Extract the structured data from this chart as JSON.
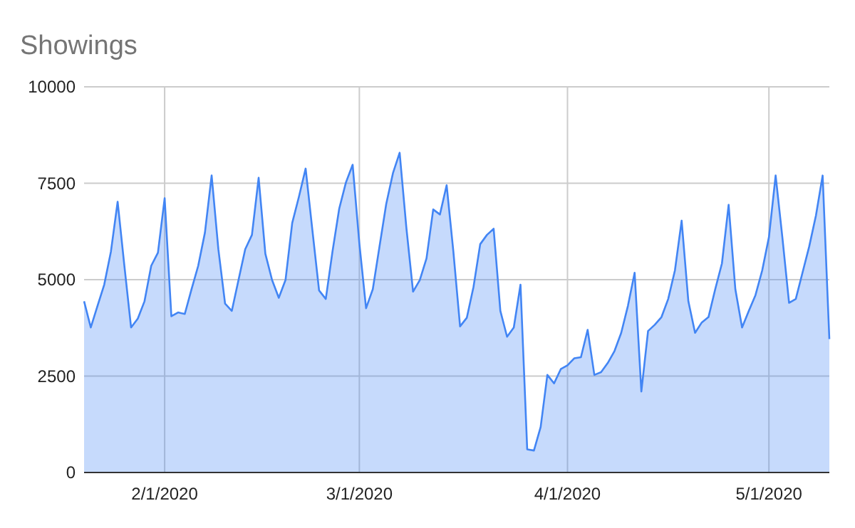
{
  "chart_data": {
    "type": "area",
    "title": "Showings",
    "xlim": [
      "2020-01-20",
      "2020-05-10"
    ],
    "ylim": [
      0,
      10000
    ],
    "yticks": [
      0,
      2500,
      5000,
      7500,
      10000
    ],
    "xticks": [
      {
        "value": "2020-02-01",
        "label": "2/1/2020"
      },
      {
        "value": "2020-03-01",
        "label": "3/1/2020"
      },
      {
        "value": "2020-04-01",
        "label": "4/1/2020"
      },
      {
        "value": "2020-05-01",
        "label": "5/1/2020"
      }
    ],
    "grid": true,
    "x": [
      "2020-01-20",
      "2020-01-21",
      "2020-01-22",
      "2020-01-23",
      "2020-01-24",
      "2020-01-25",
      "2020-01-26",
      "2020-01-27",
      "2020-01-28",
      "2020-01-29",
      "2020-01-30",
      "2020-01-31",
      "2020-02-01",
      "2020-02-02",
      "2020-02-03",
      "2020-02-04",
      "2020-02-05",
      "2020-02-06",
      "2020-02-07",
      "2020-02-08",
      "2020-02-09",
      "2020-02-10",
      "2020-02-11",
      "2020-02-12",
      "2020-02-13",
      "2020-02-14",
      "2020-02-15",
      "2020-02-16",
      "2020-02-17",
      "2020-02-18",
      "2020-02-19",
      "2020-02-20",
      "2020-02-21",
      "2020-02-22",
      "2020-02-23",
      "2020-02-24",
      "2020-02-25",
      "2020-02-26",
      "2020-02-27",
      "2020-02-28",
      "2020-02-29",
      "2020-03-01",
      "2020-03-02",
      "2020-03-03",
      "2020-03-04",
      "2020-03-05",
      "2020-03-06",
      "2020-03-07",
      "2020-03-08",
      "2020-03-09",
      "2020-03-10",
      "2020-03-11",
      "2020-03-12",
      "2020-03-13",
      "2020-03-14",
      "2020-03-15",
      "2020-03-16",
      "2020-03-17",
      "2020-03-18",
      "2020-03-19",
      "2020-03-20",
      "2020-03-21",
      "2020-03-22",
      "2020-03-23",
      "2020-03-24",
      "2020-03-25",
      "2020-03-26",
      "2020-03-27",
      "2020-03-28",
      "2020-03-29",
      "2020-03-30",
      "2020-03-31",
      "2020-04-01",
      "2020-04-02",
      "2020-04-03",
      "2020-04-04",
      "2020-04-05",
      "2020-04-06",
      "2020-04-07",
      "2020-04-08",
      "2020-04-09",
      "2020-04-10",
      "2020-04-11",
      "2020-04-12",
      "2020-04-13",
      "2020-04-14",
      "2020-04-15",
      "2020-04-16",
      "2020-04-17",
      "2020-04-18",
      "2020-04-19",
      "2020-04-20",
      "2020-04-21",
      "2020-04-22",
      "2020-04-23",
      "2020-04-24",
      "2020-04-25",
      "2020-04-26",
      "2020-04-27",
      "2020-04-28",
      "2020-04-29",
      "2020-04-30",
      "2020-05-01",
      "2020-05-02",
      "2020-05-03",
      "2020-05-04",
      "2020-05-05",
      "2020-05-06",
      "2020-05-07",
      "2020-05-08",
      "2020-05-09",
      "2020-05-10"
    ],
    "series": [
      {
        "color": "#4285f4",
        "values": [
          4440,
          3760,
          4320,
          4870,
          5730,
          7020,
          5360,
          3760,
          3990,
          4440,
          5360,
          5700,
          7110,
          4050,
          4150,
          4110,
          4750,
          5360,
          6220,
          7700,
          5790,
          4380,
          4190,
          4990,
          5790,
          6160,
          7640,
          5670,
          4990,
          4530,
          4990,
          6470,
          7150,
          7880,
          6290,
          4720,
          4500,
          5730,
          6840,
          7520,
          7980,
          5940,
          4260,
          4750,
          5860,
          6960,
          7760,
          8290,
          6350,
          4690,
          4990,
          5550,
          6820,
          6690,
          7450,
          5730,
          3790,
          4010,
          4810,
          5920,
          6160,
          6320,
          4190,
          3520,
          3760,
          4870,
          600,
          570,
          1180,
          2530,
          2310,
          2680,
          2780,
          2960,
          2990,
          3700,
          2530,
          2600,
          2840,
          3150,
          3620,
          4320,
          5180,
          2100,
          3670,
          3830,
          4030,
          4500,
          5240,
          6530,
          4440,
          3620,
          3890,
          4030,
          4750,
          5420,
          6940,
          4750,
          3760,
          4190,
          4600,
          5240,
          6100,
          7700,
          6100,
          4400,
          4500,
          5180,
          5860,
          6660,
          7700,
          3460
        ]
      }
    ]
  }
}
